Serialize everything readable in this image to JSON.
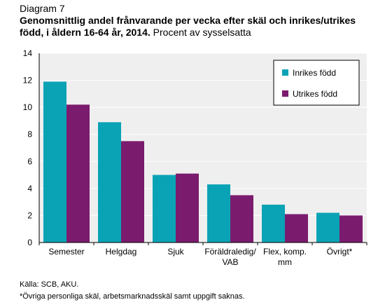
{
  "diagram_label": "Diagram 7",
  "title_bold": "Genomsnittlig andel frånvarande per vecka efter skäl och inrikes/utrikes född, i åldern 16-64 år, 2014.",
  "title_rest": "Procent av sysselsatta",
  "source": "Källa: SCB, AKU.",
  "footnote": "*Övriga personliga skäl, arbetsmarknadsskäl samt uppgift saknas.",
  "colors": {
    "inrikes": "#0aa3b5",
    "utrikes": "#7b1b6e",
    "plot_bg": "#efefef",
    "grid": "#ffffff"
  },
  "chart_data": {
    "type": "bar",
    "categories": [
      [
        "Semester"
      ],
      [
        "Helgdag"
      ],
      [
        "Sjuk"
      ],
      [
        "Föräldraledig/",
        "VAB"
      ],
      [
        "Flex, komp.",
        "mm"
      ],
      [
        "Övrigt*"
      ]
    ],
    "series": [
      {
        "name": "Inrikes född",
        "values": [
          11.9,
          8.9,
          5.0,
          4.3,
          2.8,
          2.2
        ]
      },
      {
        "name": "Utrikes född",
        "values": [
          10.2,
          7.5,
          5.1,
          3.5,
          2.1,
          2.0
        ]
      }
    ],
    "ylim": [
      0,
      14
    ],
    "yticks": [
      0,
      2,
      4,
      6,
      8,
      10,
      12,
      14
    ],
    "grid": true,
    "legend_position": "top-right"
  }
}
